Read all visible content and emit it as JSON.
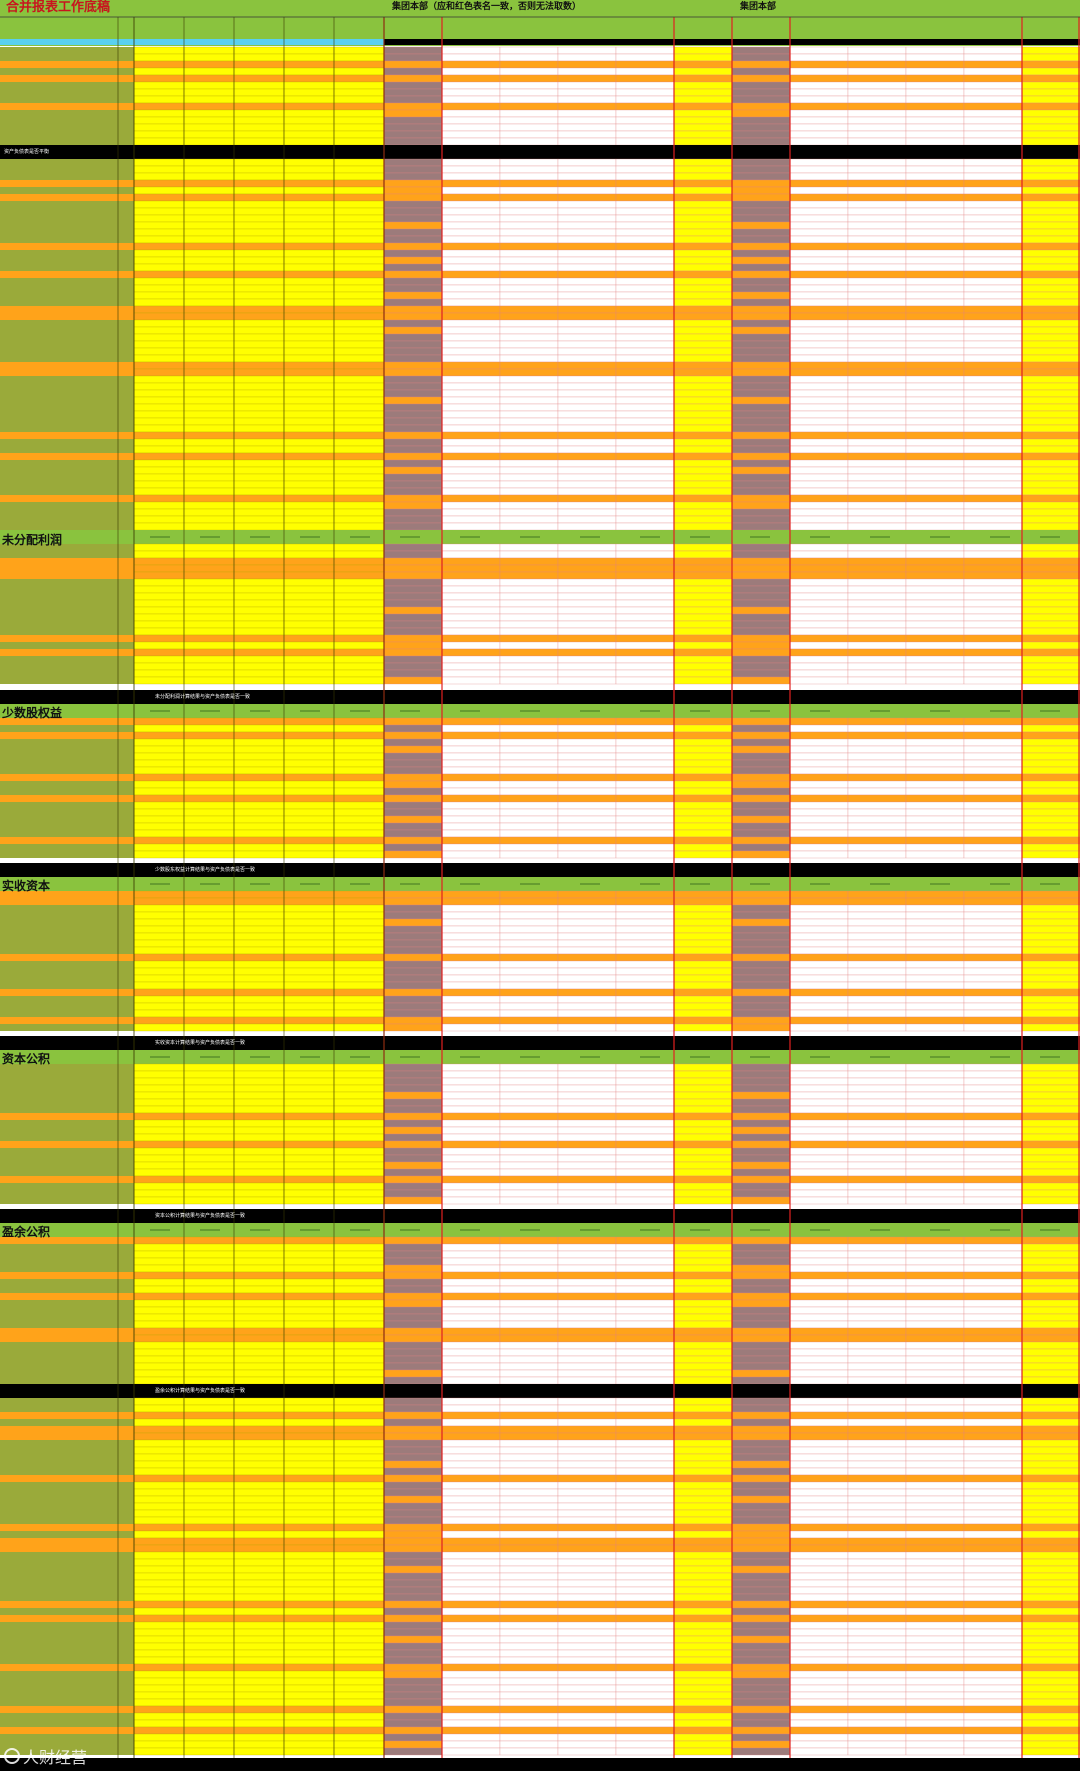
{
  "title": "合并报表工作底稿",
  "group_title_1": "集团本部（应和红色表名一致，否则无法取数）",
  "group_title_2": "集团本部",
  "sections": [
    {
      "id": "undistributed_profit",
      "title": "未分配利润"
    },
    {
      "id": "minority_equity",
      "title": "少数股权益"
    },
    {
      "id": "paid_in_capital",
      "title": "实收资本"
    },
    {
      "id": "capital_reserve",
      "title": "资本公积"
    },
    {
      "id": "surplus_reserve",
      "title": "盈余公积"
    }
  ],
  "bands": {
    "assets_check": "资产负债表是否平衡",
    "undistributed_check": "未分配利润计算结果与资产负债表是否一致",
    "minority_check": "少数股东权益计算结果与资产负债表是否一致",
    "paid_in_check": "实收资本计算结果与资产负债表是否一致",
    "capital_reserve_check": "资本公积计算结果与资产负债表是否一致",
    "surplus_reserve_check": "盈余公积计算结果与资产负债表是否一致"
  },
  "watermark": "人财经营",
  "colors": {
    "green": "#8ac33e",
    "olive": "#9aaa3a",
    "yellow": "#ffff00",
    "orange": "#ffa31a",
    "black": "#000000",
    "grey_brown": "#9c7b7b",
    "red_border": "#e02020",
    "cyan": "#5ad0f0",
    "white": "#ffffff"
  }
}
